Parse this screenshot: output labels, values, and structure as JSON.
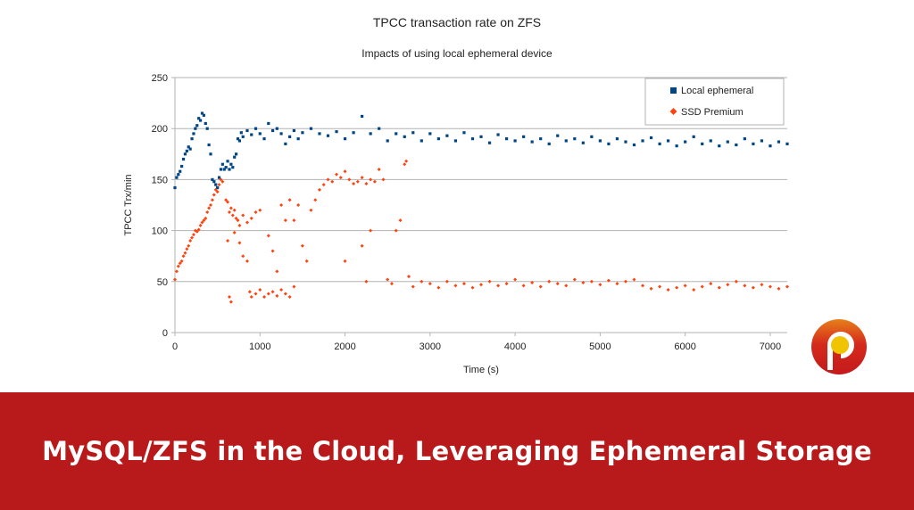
{
  "chart_data": {
    "type": "scatter",
    "title": "TPCC transaction rate on ZFS",
    "subtitle": "Impacts of using local ephemeral device",
    "xlabel": "Time (s)",
    "ylabel": "TPCC Trx/min",
    "xlim": [
      0,
      7200
    ],
    "ylim": [
      0,
      250
    ],
    "xticks": [
      0,
      1000,
      2000,
      3000,
      4000,
      5000,
      6000,
      7000
    ],
    "yticks": [
      0,
      50,
      100,
      150,
      200,
      250
    ],
    "grid": "horizontal",
    "legend_position": "top-right",
    "series": [
      {
        "name": "Local ephemeral",
        "color": "#004586",
        "marker": "square",
        "points": [
          [
            0,
            142
          ],
          [
            20,
            152
          ],
          [
            40,
            155
          ],
          [
            60,
            158
          ],
          [
            80,
            163
          ],
          [
            100,
            170
          ],
          [
            120,
            175
          ],
          [
            140,
            178
          ],
          [
            160,
            182
          ],
          [
            180,
            180
          ],
          [
            200,
            190
          ],
          [
            220,
            195
          ],
          [
            240,
            200
          ],
          [
            260,
            203
          ],
          [
            280,
            210
          ],
          [
            300,
            208
          ],
          [
            320,
            215
          ],
          [
            340,
            213
          ],
          [
            360,
            205
          ],
          [
            380,
            200
          ],
          [
            400,
            184
          ],
          [
            420,
            175
          ],
          [
            440,
            150
          ],
          [
            460,
            148
          ],
          [
            480,
            145
          ],
          [
            500,
            142
          ],
          [
            520,
            152
          ],
          [
            540,
            160
          ],
          [
            560,
            165
          ],
          [
            580,
            160
          ],
          [
            600,
            162
          ],
          [
            620,
            168
          ],
          [
            640,
            160
          ],
          [
            660,
            165
          ],
          [
            680,
            162
          ],
          [
            700,
            172
          ],
          [
            720,
            175
          ],
          [
            740,
            190
          ],
          [
            760,
            188
          ],
          [
            780,
            196
          ],
          [
            800,
            192
          ],
          [
            850,
            198
          ],
          [
            900,
            194
          ],
          [
            950,
            200
          ],
          [
            1000,
            195
          ],
          [
            1050,
            190
          ],
          [
            1100,
            205
          ],
          [
            1150,
            198
          ],
          [
            1200,
            200
          ],
          [
            1250,
            195
          ],
          [
            1300,
            185
          ],
          [
            1350,
            192
          ],
          [
            1400,
            198
          ],
          [
            1450,
            190
          ],
          [
            1500,
            196
          ],
          [
            1600,
            200
          ],
          [
            1700,
            195
          ],
          [
            1800,
            193
          ],
          [
            1900,
            197
          ],
          [
            2000,
            190
          ],
          [
            2100,
            196
          ],
          [
            2200,
            212
          ],
          [
            2300,
            195
          ],
          [
            2400,
            200
          ],
          [
            2500,
            188
          ],
          [
            2600,
            195
          ],
          [
            2700,
            192
          ],
          [
            2800,
            196
          ],
          [
            2900,
            188
          ],
          [
            3000,
            195
          ],
          [
            3100,
            190
          ],
          [
            3200,
            193
          ],
          [
            3300,
            188
          ],
          [
            3400,
            196
          ],
          [
            3500,
            190
          ],
          [
            3600,
            192
          ],
          [
            3700,
            186
          ],
          [
            3800,
            194
          ],
          [
            3900,
            190
          ],
          [
            4000,
            188
          ],
          [
            4100,
            192
          ],
          [
            4200,
            187
          ],
          [
            4300,
            190
          ],
          [
            4400,
            185
          ],
          [
            4500,
            193
          ],
          [
            4600,
            188
          ],
          [
            4700,
            190
          ],
          [
            4800,
            186
          ],
          [
            4900,
            192
          ],
          [
            5000,
            188
          ],
          [
            5100,
            185
          ],
          [
            5200,
            190
          ],
          [
            5300,
            187
          ],
          [
            5400,
            184
          ],
          [
            5500,
            188
          ],
          [
            5600,
            191
          ],
          [
            5700,
            185
          ],
          [
            5800,
            188
          ],
          [
            5900,
            183
          ],
          [
            6000,
            187
          ],
          [
            6100,
            192
          ],
          [
            6200,
            185
          ],
          [
            6300,
            188
          ],
          [
            6400,
            183
          ],
          [
            6500,
            187
          ],
          [
            6600,
            184
          ],
          [
            6700,
            190
          ],
          [
            6800,
            185
          ],
          [
            6900,
            188
          ],
          [
            7000,
            183
          ],
          [
            7100,
            187
          ],
          [
            7200,
            185
          ]
        ]
      },
      {
        "name": "SSD Premium",
        "color": "#ff420e",
        "marker": "diamond",
        "points": [
          [
            0,
            52
          ],
          [
            20,
            60
          ],
          [
            40,
            65
          ],
          [
            60,
            68
          ],
          [
            80,
            70
          ],
          [
            100,
            75
          ],
          [
            120,
            78
          ],
          [
            140,
            82
          ],
          [
            160,
            85
          ],
          [
            180,
            90
          ],
          [
            200,
            93
          ],
          [
            220,
            96
          ],
          [
            240,
            100
          ],
          [
            260,
            99
          ],
          [
            280,
            101
          ],
          [
            300,
            105
          ],
          [
            320,
            108
          ],
          [
            340,
            110
          ],
          [
            360,
            112
          ],
          [
            380,
            118
          ],
          [
            400,
            122
          ],
          [
            420,
            125
          ],
          [
            440,
            130
          ],
          [
            460,
            135
          ],
          [
            480,
            140
          ],
          [
            500,
            138
          ],
          [
            520,
            145
          ],
          [
            540,
            150
          ],
          [
            560,
            148
          ],
          [
            600,
            130
          ],
          [
            620,
            128
          ],
          [
            640,
            118
          ],
          [
            660,
            122
          ],
          [
            680,
            115
          ],
          [
            700,
            120
          ],
          [
            720,
            112
          ],
          [
            740,
            110
          ],
          [
            760,
            105
          ],
          [
            800,
            115
          ],
          [
            850,
            108
          ],
          [
            900,
            112
          ],
          [
            950,
            118
          ],
          [
            1000,
            120
          ],
          [
            620,
            90
          ],
          [
            640,
            35
          ],
          [
            660,
            30
          ],
          [
            700,
            98
          ],
          [
            760,
            88
          ],
          [
            800,
            75
          ],
          [
            850,
            70
          ],
          [
            880,
            40
          ],
          [
            900,
            35
          ],
          [
            950,
            38
          ],
          [
            1000,
            42
          ],
          [
            1050,
            35
          ],
          [
            1100,
            38
          ],
          [
            1150,
            40
          ],
          [
            1200,
            36
          ],
          [
            1250,
            42
          ],
          [
            1300,
            38
          ],
          [
            1350,
            35
          ],
          [
            1400,
            45
          ],
          [
            1100,
            95
          ],
          [
            1150,
            80
          ],
          [
            1200,
            60
          ],
          [
            1250,
            125
          ],
          [
            1300,
            110
          ],
          [
            1350,
            130
          ],
          [
            1400,
            110
          ],
          [
            1450,
            125
          ],
          [
            1500,
            85
          ],
          [
            1550,
            70
          ],
          [
            1600,
            120
          ],
          [
            1650,
            130
          ],
          [
            1700,
            140
          ],
          [
            1750,
            145
          ],
          [
            1800,
            150
          ],
          [
            1850,
            148
          ],
          [
            1900,
            155
          ],
          [
            1950,
            152
          ],
          [
            2000,
            158
          ],
          [
            2050,
            150
          ],
          [
            2100,
            146
          ],
          [
            2150,
            148
          ],
          [
            2200,
            152
          ],
          [
            2250,
            146
          ],
          [
            2300,
            150
          ],
          [
            2350,
            148
          ],
          [
            2400,
            160
          ],
          [
            2450,
            150
          ],
          [
            2000,
            70
          ],
          [
            2200,
            85
          ],
          [
            2250,
            50
          ],
          [
            2300,
            100
          ],
          [
            2500,
            52
          ],
          [
            2550,
            48
          ],
          [
            2600,
            100
          ],
          [
            2650,
            110
          ],
          [
            2700,
            165
          ],
          [
            2720,
            168
          ],
          [
            2750,
            55
          ],
          [
            2800,
            45
          ],
          [
            2900,
            50
          ],
          [
            3000,
            48
          ],
          [
            3100,
            44
          ],
          [
            3200,
            50
          ],
          [
            3300,
            46
          ],
          [
            3400,
            48
          ],
          [
            3500,
            44
          ],
          [
            3600,
            47
          ],
          [
            3700,
            50
          ],
          [
            3800,
            46
          ],
          [
            3900,
            48
          ],
          [
            4000,
            52
          ],
          [
            4100,
            46
          ],
          [
            4200,
            49
          ],
          [
            4300,
            45
          ],
          [
            4400,
            50
          ],
          [
            4500,
            48
          ],
          [
            4600,
            46
          ],
          [
            4700,
            52
          ],
          [
            4800,
            49
          ],
          [
            4900,
            50
          ],
          [
            5000,
            47
          ],
          [
            5100,
            51
          ],
          [
            5200,
            48
          ],
          [
            5300,
            50
          ],
          [
            5400,
            52
          ],
          [
            5500,
            46
          ],
          [
            5600,
            43
          ],
          [
            5700,
            45
          ],
          [
            5800,
            42
          ],
          [
            5900,
            44
          ],
          [
            6000,
            46
          ],
          [
            6100,
            42
          ],
          [
            6200,
            45
          ],
          [
            6300,
            48
          ],
          [
            6400,
            44
          ],
          [
            6500,
            47
          ],
          [
            6600,
            50
          ],
          [
            6700,
            46
          ],
          [
            6800,
            44
          ],
          [
            6900,
            47
          ],
          [
            7000,
            45
          ],
          [
            7100,
            43
          ],
          [
            7200,
            45
          ]
        ]
      }
    ]
  },
  "banner": {
    "title": "MySQL/ZFS in the Cloud, Leveraging Ephemeral Storage",
    "color": "#b8191b"
  },
  "logo": {
    "text": "P"
  }
}
